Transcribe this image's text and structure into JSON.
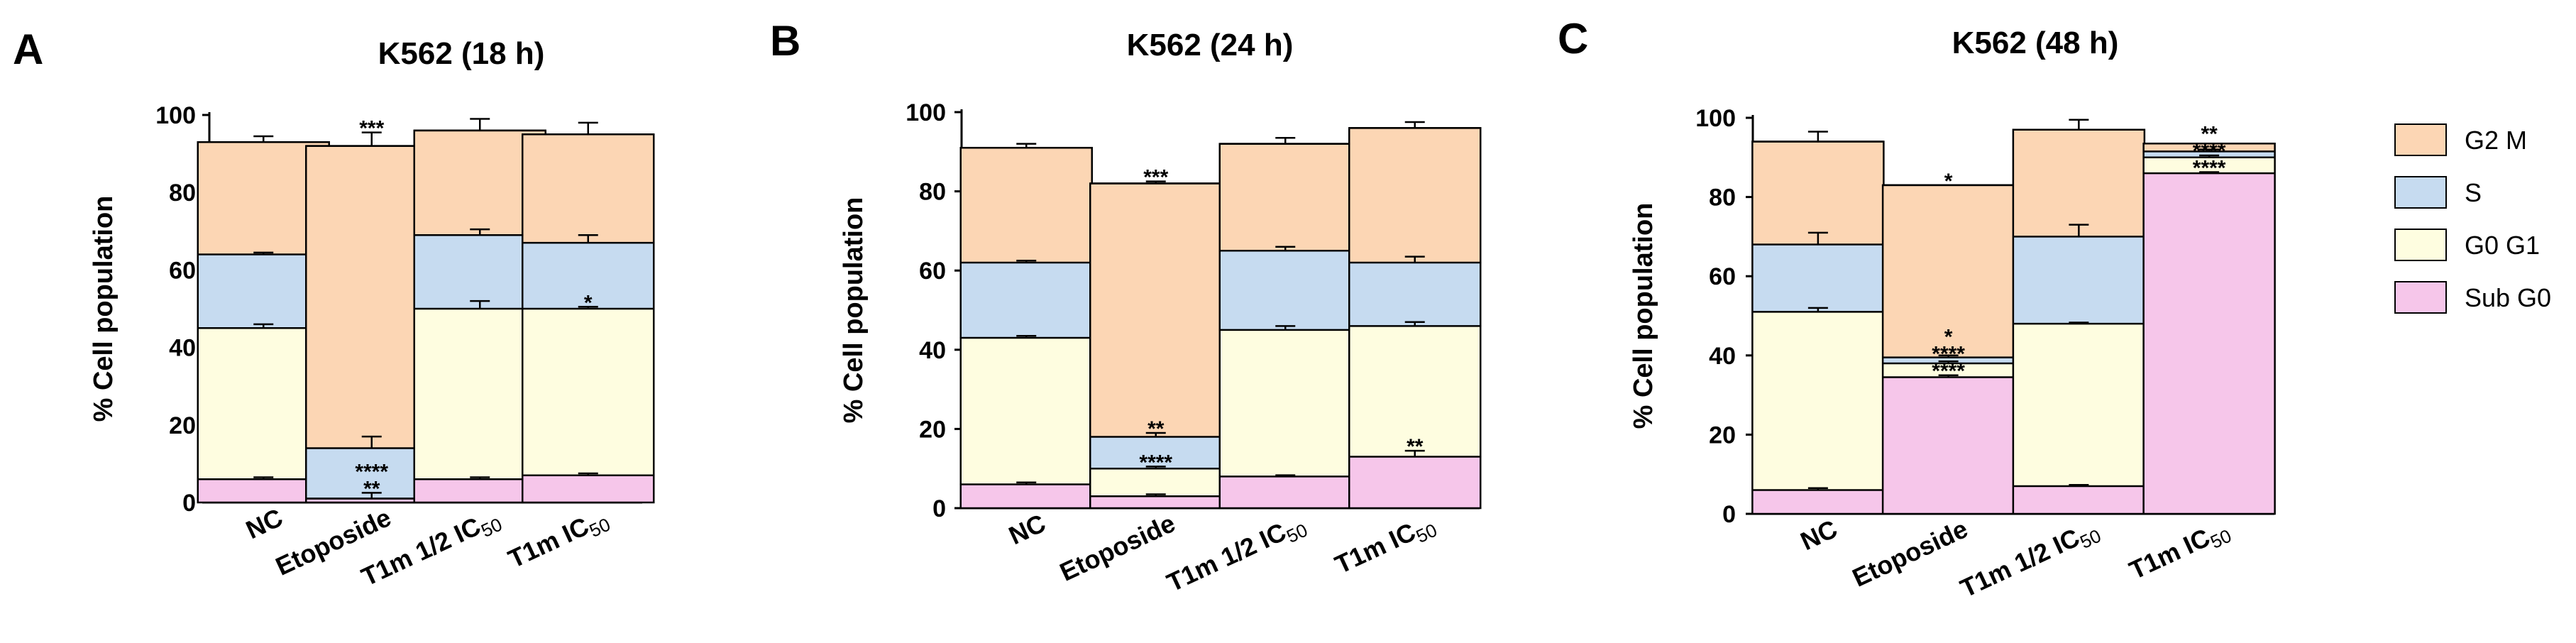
{
  "chart_data": [
    {
      "panel": "A",
      "title": "K562 (18 h)",
      "type": "bar",
      "stacked": true,
      "ylabel": "% Cell population",
      "ylim": [
        0,
        100
      ],
      "yticks": [
        0,
        20,
        40,
        60,
        80,
        100
      ],
      "categories": [
        "NC",
        "Etoposide",
        "T1m 1/2 IC50",
        "T1m IC50"
      ],
      "series": [
        {
          "name": "Sub G0",
          "values": [
            6,
            1,
            6,
            7
          ],
          "errors": [
            0.5,
            1.5,
            0.5,
            0.5
          ],
          "sig": [
            "",
            "**",
            "",
            ""
          ]
        },
        {
          "name": "G0 G1",
          "values": [
            39,
            0,
            44,
            43
          ],
          "errors": [
            1,
            0,
            2,
            0.5
          ],
          "sig": [
            "",
            "****",
            "",
            "*"
          ]
        },
        {
          "name": "S",
          "values": [
            19,
            13,
            19,
            17
          ],
          "errors": [
            0.5,
            3,
            1.5,
            2
          ],
          "sig": [
            "",
            "",
            "",
            ""
          ]
        },
        {
          "name": "G2 M",
          "values": [
            29,
            78,
            27,
            28
          ],
          "errors": [
            1.5,
            3.5,
            3,
            3
          ],
          "sig": [
            "",
            "***",
            "",
            ""
          ]
        }
      ]
    },
    {
      "panel": "B",
      "title": "K562 (24 h)",
      "type": "bar",
      "stacked": true,
      "ylabel": "% Cell population",
      "ylim": [
        0,
        100
      ],
      "yticks": [
        0,
        20,
        40,
        60,
        80,
        100
      ],
      "categories": [
        "NC",
        "Etoposide",
        "T1m 1/2 IC50",
        "T1m IC50"
      ],
      "series": [
        {
          "name": "Sub G0",
          "values": [
            6,
            3,
            8,
            13
          ],
          "errors": [
            0.5,
            0.5,
            0.3,
            1.5
          ],
          "sig": [
            "",
            "",
            "",
            "**"
          ]
        },
        {
          "name": "G0 G1",
          "values": [
            37,
            7,
            37,
            33
          ],
          "errors": [
            0.5,
            0.5,
            1,
            1
          ],
          "sig": [
            "",
            "****",
            "",
            ""
          ]
        },
        {
          "name": "S",
          "values": [
            19,
            8,
            20,
            16
          ],
          "errors": [
            0.5,
            1,
            1,
            1.5
          ],
          "sig": [
            "",
            "**",
            "",
            ""
          ]
        },
        {
          "name": "G2 M",
          "values": [
            29,
            64,
            27,
            34
          ],
          "errors": [
            1,
            0.5,
            1.5,
            1.5
          ],
          "sig": [
            "",
            "***",
            "",
            ""
          ]
        }
      ]
    },
    {
      "panel": "C",
      "title": "K562 (48 h)",
      "type": "bar",
      "stacked": true,
      "ylabel": "% Cell population",
      "ylim": [
        0,
        100
      ],
      "yticks": [
        0,
        20,
        40,
        60,
        80,
        100
      ],
      "categories": [
        "NC",
        "Etoposide",
        "T1m 1/2 IC50",
        "T1m IC50"
      ],
      "series": [
        {
          "name": "Sub G0",
          "values": [
            6,
            34.5,
            7,
            86
          ],
          "errors": [
            0.5,
            0.5,
            0.3,
            0.3
          ],
          "sig": [
            "",
            "****",
            "",
            "****"
          ]
        },
        {
          "name": "G0 G1",
          "values": [
            45,
            3.5,
            41,
            4
          ],
          "errors": [
            1,
            0.5,
            0.3,
            0.5
          ],
          "sig": [
            "",
            "****",
            "",
            "****"
          ]
        },
        {
          "name": "S",
          "values": [
            17,
            1.5,
            22,
            1.5
          ],
          "errors": [
            3,
            0.5,
            3,
            0.5
          ],
          "sig": [
            "",
            "*",
            "",
            "**"
          ]
        },
        {
          "name": "G2 M",
          "values": [
            26,
            43.5,
            27,
            2
          ],
          "errors": [
            2.5,
            0,
            2.5,
            0
          ],
          "sig": [
            "",
            "*",
            "",
            ""
          ]
        }
      ]
    }
  ],
  "legend": {
    "placement": "right",
    "items": [
      {
        "name": "G2 M",
        "color": "#FCD6B4"
      },
      {
        "name": "S",
        "color": "#C6DBF0"
      },
      {
        "name": "G0 G1",
        "color": "#FEFDE0"
      },
      {
        "name": "Sub G0",
        "color": "#F6C6EA"
      }
    ]
  },
  "colors": {
    "Sub G0": "#F6C6EA",
    "G0 G1": "#FEFDE0",
    "S": "#C6DBF0",
    "G2 M": "#FCD6B4",
    "axis": "#000000"
  }
}
